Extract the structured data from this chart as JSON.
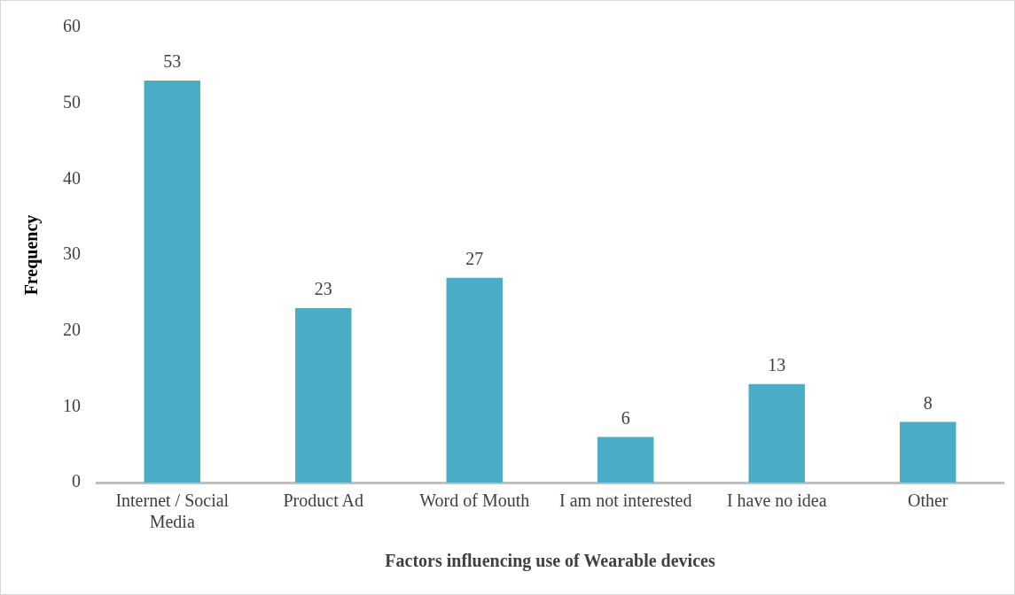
{
  "chart_data": {
    "type": "bar",
    "xlabel": "Factors influencing use of Wearable devices",
    "ylabel": "Frequency",
    "categories": [
      "Internet / Social Media",
      "Product Ad",
      "Word of Mouth",
      "I am not interested",
      "I have no idea",
      "Other"
    ],
    "values": [
      53,
      23,
      27,
      6,
      13,
      8
    ],
    "color": "#4bacc6",
    "ylim": [
      0,
      60
    ],
    "yticks": [
      0,
      10,
      20,
      30,
      40,
      50,
      60
    ],
    "grid": false,
    "data_labels": true
  }
}
